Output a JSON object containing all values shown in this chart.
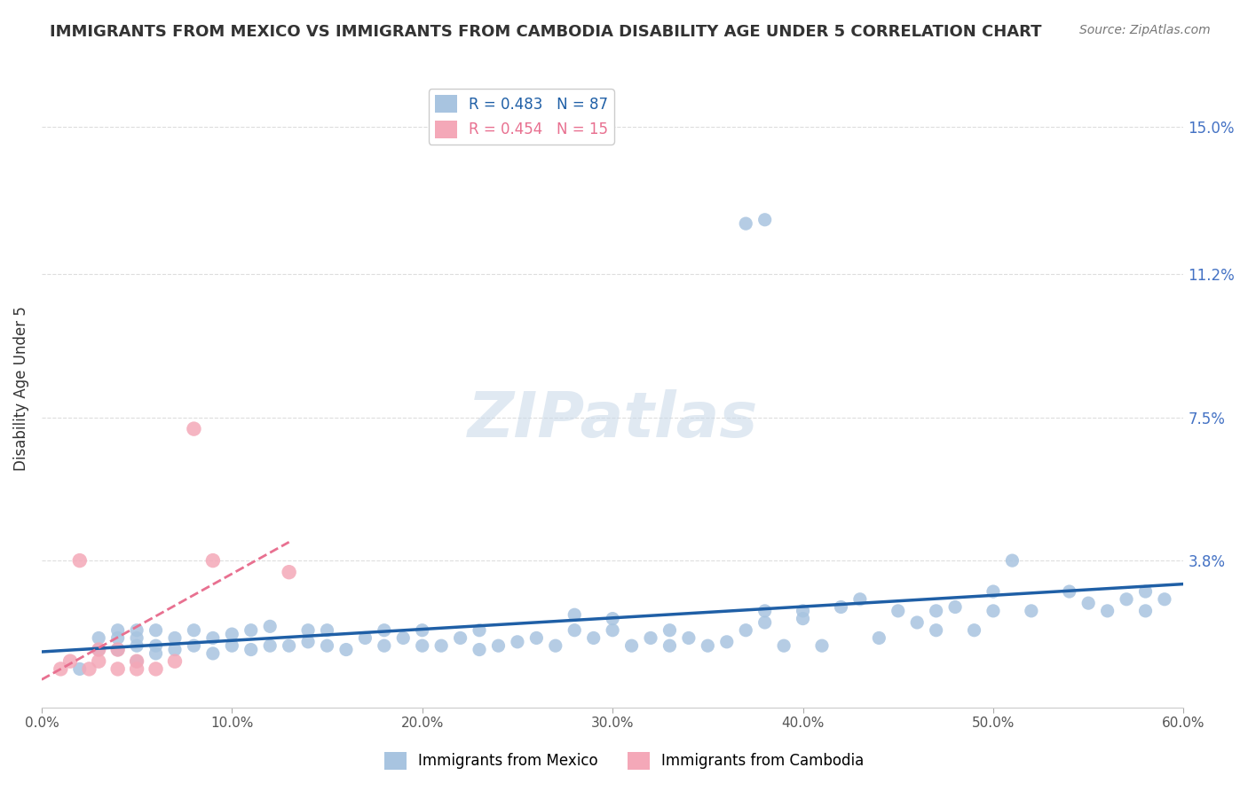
{
  "title": "IMMIGRANTS FROM MEXICO VS IMMIGRANTS FROM CAMBODIA DISABILITY AGE UNDER 5 CORRELATION CHART",
  "source": "Source: ZipAtlas.com",
  "xlabel": "",
  "ylabel": "Disability Age Under 5",
  "xlim": [
    0.0,
    0.6
  ],
  "ylim": [
    0.0,
    0.165
  ],
  "yticks": [
    0.038,
    0.075,
    0.112,
    0.15
  ],
  "ytick_labels": [
    "3.8%",
    "7.5%",
    "11.2%",
    "15.0%"
  ],
  "xticks": [
    0.0,
    0.1,
    0.2,
    0.3,
    0.4,
    0.5,
    0.6
  ],
  "xtick_labels": [
    "0.0%",
    "10.0%",
    "20.0%",
    "30.0%",
    "40.0%",
    "50.0%",
    "60.0%"
  ],
  "mexico_R": 0.483,
  "mexico_N": 87,
  "cambodia_R": 0.454,
  "cambodia_N": 15,
  "mexico_color": "#a8c4e0",
  "cambodia_color": "#f4a8b8",
  "mexico_line_color": "#1f5fa6",
  "cambodia_line_color": "#e87090",
  "watermark": "ZIPatlas",
  "legend_mexico_label": "Immigrants from Mexico",
  "legend_cambodia_label": "Immigrants from Cambodia",
  "mexico_x": [
    0.02,
    0.03,
    0.03,
    0.04,
    0.04,
    0.04,
    0.04,
    0.05,
    0.05,
    0.05,
    0.05,
    0.06,
    0.06,
    0.06,
    0.07,
    0.07,
    0.08,
    0.08,
    0.09,
    0.09,
    0.1,
    0.1,
    0.11,
    0.11,
    0.12,
    0.12,
    0.13,
    0.14,
    0.14,
    0.15,
    0.15,
    0.16,
    0.17,
    0.18,
    0.18,
    0.19,
    0.2,
    0.2,
    0.21,
    0.22,
    0.23,
    0.23,
    0.24,
    0.25,
    0.26,
    0.27,
    0.28,
    0.28,
    0.29,
    0.3,
    0.3,
    0.31,
    0.32,
    0.33,
    0.33,
    0.34,
    0.35,
    0.36,
    0.37,
    0.38,
    0.38,
    0.39,
    0.4,
    0.4,
    0.41,
    0.42,
    0.43,
    0.44,
    0.45,
    0.46,
    0.47,
    0.47,
    0.48,
    0.49,
    0.5,
    0.5,
    0.51,
    0.52,
    0.54,
    0.55,
    0.56,
    0.57,
    0.58,
    0.58,
    0.59,
    0.37,
    0.38
  ],
  "mexico_y": [
    0.01,
    0.015,
    0.018,
    0.015,
    0.018,
    0.02,
    0.015,
    0.012,
    0.016,
    0.018,
    0.02,
    0.014,
    0.016,
    0.02,
    0.015,
    0.018,
    0.016,
    0.02,
    0.014,
    0.018,
    0.016,
    0.019,
    0.015,
    0.02,
    0.016,
    0.021,
    0.016,
    0.017,
    0.02,
    0.016,
    0.02,
    0.015,
    0.018,
    0.016,
    0.02,
    0.018,
    0.016,
    0.02,
    0.016,
    0.018,
    0.015,
    0.02,
    0.016,
    0.017,
    0.018,
    0.016,
    0.02,
    0.024,
    0.018,
    0.02,
    0.023,
    0.016,
    0.018,
    0.016,
    0.02,
    0.018,
    0.016,
    0.017,
    0.02,
    0.022,
    0.025,
    0.016,
    0.025,
    0.023,
    0.016,
    0.026,
    0.028,
    0.018,
    0.025,
    0.022,
    0.02,
    0.025,
    0.026,
    0.02,
    0.025,
    0.03,
    0.038,
    0.025,
    0.03,
    0.027,
    0.025,
    0.028,
    0.03,
    0.025,
    0.028,
    0.125,
    0.126
  ],
  "cambodia_x": [
    0.01,
    0.015,
    0.02,
    0.025,
    0.03,
    0.03,
    0.04,
    0.04,
    0.05,
    0.05,
    0.06,
    0.07,
    0.08,
    0.09,
    0.13
  ],
  "cambodia_y": [
    0.01,
    0.012,
    0.038,
    0.01,
    0.012,
    0.015,
    0.01,
    0.015,
    0.01,
    0.012,
    0.01,
    0.012,
    0.072,
    0.038,
    0.035
  ]
}
